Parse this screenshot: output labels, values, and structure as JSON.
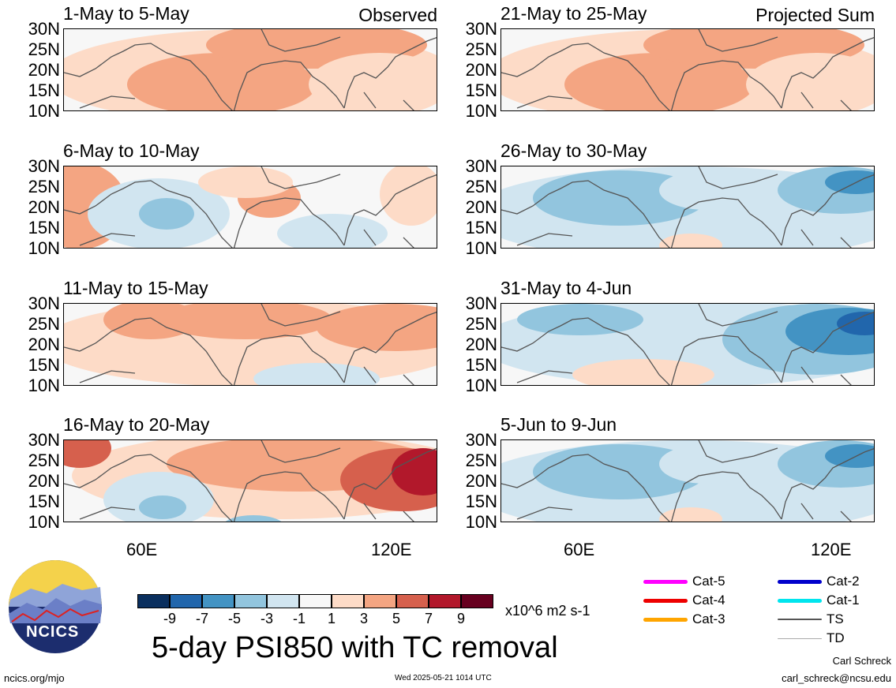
{
  "panels": [
    {
      "title": "1-May to 5-May",
      "tag": "Observed",
      "anomaly": "warm-north"
    },
    {
      "title": "6-May to 10-May",
      "tag": "",
      "anomaly": "mixed"
    },
    {
      "title": "11-May to 15-May",
      "tag": "",
      "anomaly": "warm"
    },
    {
      "title": "16-May to 20-May",
      "tag": "",
      "anomaly": "strong-warm"
    },
    {
      "title": "21-May to 25-May",
      "tag": "Projected Sum",
      "anomaly": "warm-north"
    },
    {
      "title": "26-May to 30-May",
      "tag": "",
      "anomaly": "cool"
    },
    {
      "title": "31-May to 4-Jun",
      "tag": "",
      "anomaly": "strong-cool"
    },
    {
      "title": "5-Jun to 9-Jun",
      "tag": "",
      "anomaly": "cool"
    }
  ],
  "lat_labels": [
    "30N",
    "25N",
    "20N",
    "15N",
    "10N"
  ],
  "lon_labels": [
    "60E",
    "120E"
  ],
  "colorbar": {
    "labels": [
      "-9",
      "-7",
      "-5",
      "-3",
      "-1",
      "1",
      "3",
      "5",
      "7",
      "9"
    ],
    "colors": [
      "#0a2f5e",
      "#2166ac",
      "#4393c3",
      "#92c5de",
      "#d1e5f0",
      "#f7f7f7",
      "#fddbc7",
      "#f4a582",
      "#d6604d",
      "#b2182b",
      "#67001f"
    ],
    "units": "x10^6 m2 s-1"
  },
  "legend": [
    {
      "label": "Cat-5",
      "color": "#ff00ff"
    },
    {
      "label": "Cat-4",
      "color": "#ee0000"
    },
    {
      "label": "Cat-3",
      "color": "#ffa500"
    },
    {
      "label": "Cat-2",
      "color": "#0000cc"
    },
    {
      "label": "Cat-1",
      "color": "#00e5ee"
    },
    {
      "label": "TS",
      "color": "#555555"
    },
    {
      "label": "TD",
      "color": "#aaaaaa"
    }
  ],
  "logo_text": "NCICS",
  "main_title": "5-day PSI850 with TC removal",
  "footer": {
    "url": "ncics.org/mjo",
    "timestamp": "Wed 2025-05-21 1014 UTC",
    "author": "Carl Schreck",
    "email": "carl_schreck@ncsu.edu"
  }
}
